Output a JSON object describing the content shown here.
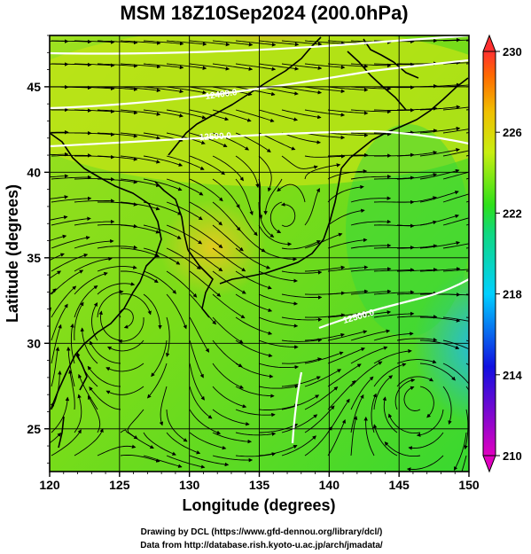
{
  "title": "MSM 18Z10Sep2024 (200.0hPa)",
  "xlabel": "Longitude (degrees)",
  "ylabel": "Latitude  (degrees)",
  "x_ticks": [
    "120",
    "125",
    "130",
    "135",
    "140",
    "145",
    "150"
  ],
  "y_ticks": [
    "25",
    "30",
    "35",
    "40",
    "45"
  ],
  "colorbar": {
    "labels": [
      "230",
      "226",
      "222",
      "218",
      "214",
      "210"
    ],
    "min": 210,
    "max": 230,
    "colors": [
      "#e000c0",
      "#1010e0",
      "#00d0ff",
      "#10d880",
      "#2ee01a",
      "#c8ee10",
      "#f0c000",
      "#ff6a00",
      "#ff3030"
    ]
  },
  "contour_labels": [
    "12400.0",
    "12500.0",
    "12500.0"
  ],
  "credit": {
    "line1": "Drawing by DCL (https://www.gfd-dennou.org/library/dcl/)",
    "line2": "Data from http://database.rish.kyoto-u.ac.jp/arch/jmadata/"
  },
  "map": {
    "lon_range": [
      120,
      150
    ],
    "lat_range": [
      22.5,
      48
    ]
  }
}
